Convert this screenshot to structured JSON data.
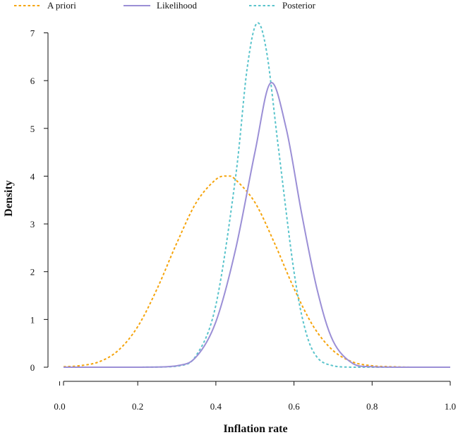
{
  "chart_data": {
    "type": "line",
    "title": "",
    "xlabel": "Inflation rate",
    "ylabel": "Density",
    "xlim": [
      0.01,
      1.0
    ],
    "ylim": [
      0,
      7.2
    ],
    "xticks": [
      0.0,
      0.2,
      0.4,
      0.6,
      0.8,
      1.0
    ],
    "xtick_labels": [
      "0.0",
      "0.2",
      "0.4",
      "0.6",
      "0.8",
      "1.0"
    ],
    "yticks": [
      0,
      1,
      2,
      3,
      4,
      5,
      6,
      7
    ],
    "ytick_labels": [
      "0",
      "1",
      "2",
      "3",
      "4",
      "5",
      "6",
      "7"
    ],
    "grid": false,
    "legend_position": "top",
    "series": [
      {
        "name": "A priori",
        "color": "#F5A40C",
        "style": "dashed",
        "x": [
          0.01,
          0.05,
          0.1,
          0.15,
          0.2,
          0.25,
          0.3,
          0.35,
          0.4,
          0.43,
          0.45,
          0.5,
          0.55,
          0.6,
          0.65,
          0.7,
          0.75,
          0.8,
          0.85,
          0.9,
          0.95,
          1.0
        ],
        "y": [
          0.01,
          0.03,
          0.11,
          0.35,
          0.85,
          1.65,
          2.6,
          3.45,
          3.93,
          4.0,
          3.93,
          3.45,
          2.6,
          1.65,
          0.85,
          0.35,
          0.11,
          0.03,
          0.01,
          0.0,
          0.0,
          0.0
        ]
      },
      {
        "name": "Likelihood",
        "color": "#9B8FD6",
        "style": "solid",
        "x": [
          0.01,
          0.2,
          0.3,
          0.35,
          0.4,
          0.45,
          0.5,
          0.54,
          0.58,
          0.62,
          0.66,
          0.7,
          0.75,
          0.8,
          0.9,
          1.0
        ],
        "y": [
          0.0,
          0.0,
          0.03,
          0.22,
          0.95,
          2.45,
          4.5,
          5.95,
          5.0,
          3.2,
          1.6,
          0.55,
          0.08,
          0.01,
          0.0,
          0.0
        ]
      },
      {
        "name": "Posterior",
        "color": "#5BC4CC",
        "style": "dashed",
        "x": [
          0.01,
          0.2,
          0.3,
          0.35,
          0.4,
          0.45,
          0.48,
          0.505,
          0.53,
          0.56,
          0.6,
          0.63,
          0.66,
          0.7,
          0.75,
          0.8,
          0.9,
          1.0
        ],
        "y": [
          0.0,
          0.0,
          0.02,
          0.25,
          1.3,
          3.95,
          6.25,
          7.2,
          6.6,
          4.6,
          2.0,
          0.75,
          0.2,
          0.03,
          0.0,
          0.0,
          0.0,
          0.0
        ]
      }
    ]
  }
}
